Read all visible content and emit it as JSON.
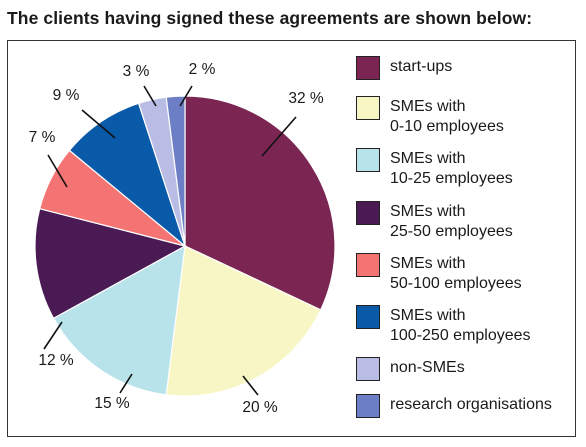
{
  "title": "The clients having signed these agreements are shown below:",
  "chart_data": {
    "type": "pie",
    "title": "The clients having signed these agreements are shown below:",
    "slices": [
      {
        "label": "start-ups",
        "value": 32,
        "value_label": "32 %",
        "color": "#7b2553"
      },
      {
        "label": "SMEs with\n0-10 employees",
        "value": 20,
        "value_label": "20 %",
        "color": "#f8f6c4"
      },
      {
        "label": "SMEs with\n10-25 employees",
        "value": 15,
        "value_label": "15 %",
        "color": "#b9e3eb"
      },
      {
        "label": "SMEs with\n25-50 employees",
        "value": 12,
        "value_label": "12 %",
        "color": "#4a1a55"
      },
      {
        "label": "SMEs with\n50-100 employees",
        "value": 7,
        "value_label": "7 %",
        "color": "#f47373"
      },
      {
        "label": "SMEs with\n100-250 employees",
        "value": 9,
        "value_label": "9 %",
        "color": "#0a5aaa"
      },
      {
        "label": "non-SMEs",
        "value": 3,
        "value_label": "3 %",
        "color": "#b9bde6"
      },
      {
        "label": "research organisations",
        "value": 2,
        "value_label": "2 %",
        "color": "#6c7fc6"
      }
    ],
    "legend_position": "right"
  }
}
